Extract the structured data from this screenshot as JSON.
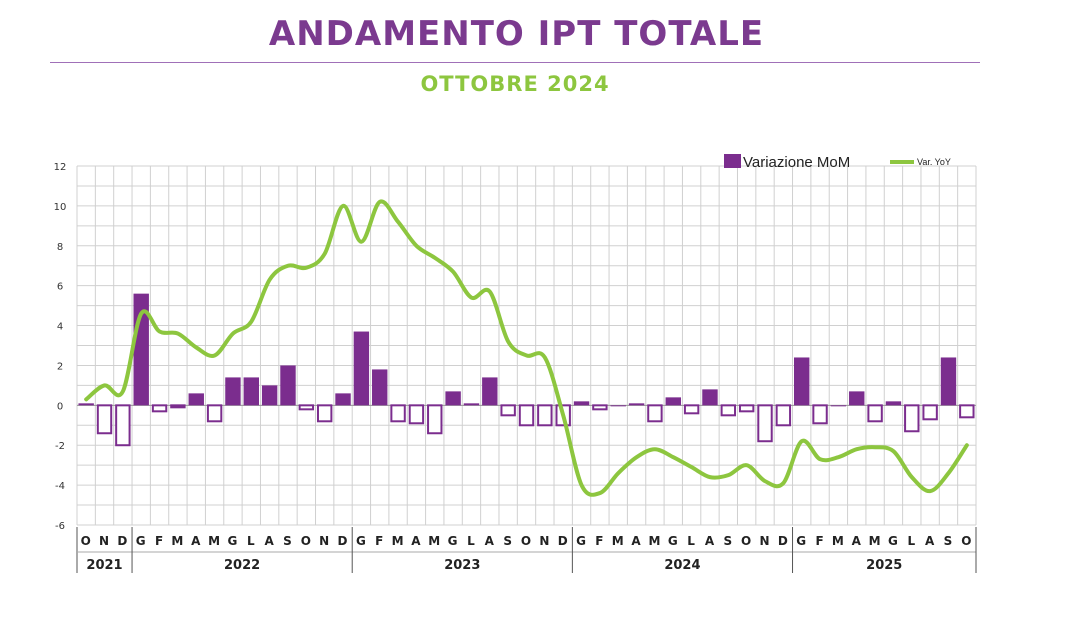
{
  "title": "ANDAMENTO IPT TOTALE",
  "subtitle": "OTTOBRE 2024",
  "colors": {
    "title": "#7b3a8f",
    "subtitle": "#8dc63f",
    "bar": "#7b2d8e",
    "line": "#8dc63f",
    "grid": "#d0d0d0"
  },
  "chart_data": {
    "type": "bar",
    "ylim": [
      -6,
      12
    ],
    "yticks": [
      -6,
      -4,
      -2,
      0,
      2,
      4,
      6,
      8,
      10,
      12
    ],
    "grid": true,
    "legend_position": "top-right",
    "months": [
      "O",
      "N",
      "D",
      "G",
      "F",
      "M",
      "A",
      "M",
      "G",
      "L",
      "A",
      "S",
      "O",
      "N",
      "D",
      "G",
      "F",
      "M",
      "A",
      "M",
      "G",
      "L",
      "A",
      "S",
      "O",
      "N",
      "D",
      "G",
      "F",
      "M",
      "A",
      "M",
      "G",
      "L",
      "A",
      "S",
      "O",
      "N",
      "D",
      "G",
      "F",
      "M",
      "A",
      "M",
      "G",
      "L",
      "A",
      "S",
      "O"
    ],
    "years": [
      {
        "label": "2021",
        "start": 0,
        "count": 3
      },
      {
        "label": "2022",
        "start": 3,
        "count": 12
      },
      {
        "label": "2023",
        "start": 15,
        "count": 12
      },
      {
        "label": "2024",
        "start": 27,
        "count": 12
      },
      {
        "label": "2025",
        "start": 39,
        "count": 10
      }
    ],
    "series": [
      {
        "name": "Variazione MoM",
        "kind": "bar",
        "values": [
          0.1,
          -1.4,
          -2.0,
          5.6,
          -0.3,
          -0.1,
          0.6,
          -0.8,
          1.4,
          1.4,
          1.0,
          2.0,
          -0.2,
          -0.8,
          0.6,
          3.7,
          1.8,
          -0.8,
          -0.9,
          -1.4,
          0.7,
          0.1,
          1.4,
          -0.5,
          -1.0,
          -1.0,
          -1.0,
          0.2,
          -0.2,
          0.0,
          0.1,
          -0.8,
          0.4,
          -0.4,
          0.8,
          -0.5,
          -0.3,
          -1.8,
          -1.0,
          2.4,
          -0.9,
          0.0,
          0.7,
          -0.8,
          0.2,
          -1.3,
          -0.7,
          2.4,
          -0.6
        ]
      },
      {
        "name": "Var. YoY",
        "kind": "line",
        "values": [
          0.3,
          1.0,
          0.7,
          4.6,
          3.7,
          3.6,
          2.9,
          2.5,
          3.6,
          4.2,
          6.3,
          7.0,
          6.9,
          7.6,
          10.0,
          8.2,
          10.2,
          9.2,
          8.0,
          7.4,
          6.7,
          5.4,
          5.7,
          3.2,
          2.5,
          2.4,
          -0.5,
          -4.0,
          -4.4,
          -3.4,
          -2.6,
          -2.2,
          -2.6,
          -3.1,
          -3.6,
          -3.5,
          -3.0,
          -3.8,
          -3.9,
          -1.8,
          -2.7,
          -2.6,
          -2.2,
          -2.1,
          -2.3,
          -3.6,
          -4.3,
          -3.4,
          -2.0
        ]
      }
    ]
  }
}
